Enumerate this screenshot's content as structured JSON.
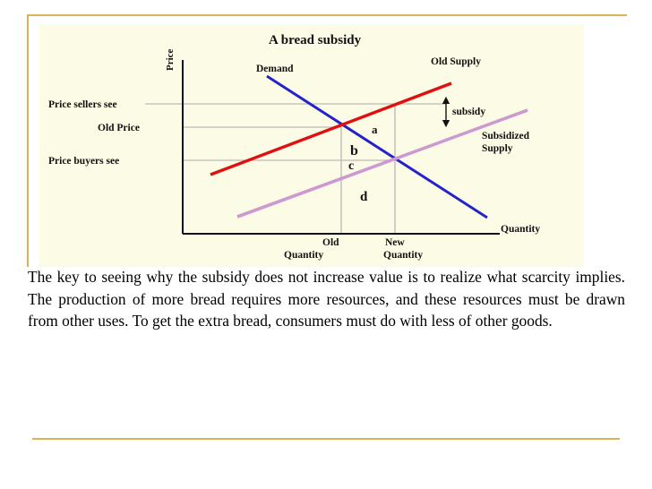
{
  "figure": {
    "title": "A bread subsidy",
    "axis_price": "Price",
    "axis_quantity": "Quantity",
    "curve_demand": "Demand",
    "curve_old_supply": "Old Supply",
    "curve_subsidized_line1": "Subsidized",
    "curve_subsidized_line2": "Supply",
    "subsidy_label": "subsidy",
    "price_sellers": "Price sellers see",
    "price_old": "Old Price",
    "price_buyers": "Price buyers see",
    "old_quantity_line1": "Old",
    "old_quantity_line2": "Quantity",
    "new_quantity_line1": "New",
    "new_quantity_line2": "Quantity",
    "area_a": "a",
    "area_b": "b",
    "area_c": "c",
    "area_d": "d",
    "colors": {
      "demand": "#2323c8",
      "old_supply": "#e01010",
      "subsidized_supply": "#cc9ad0",
      "guides": "#b8b8b8",
      "background": "#fcfce6"
    }
  },
  "caption": "The key to seeing why the subsidy does not increase value is to realize what scarcity implies. The production of more bread requires more resources, and these resources must be drawn from other uses. To get the extra bread, consumers must do with less of other goods."
}
